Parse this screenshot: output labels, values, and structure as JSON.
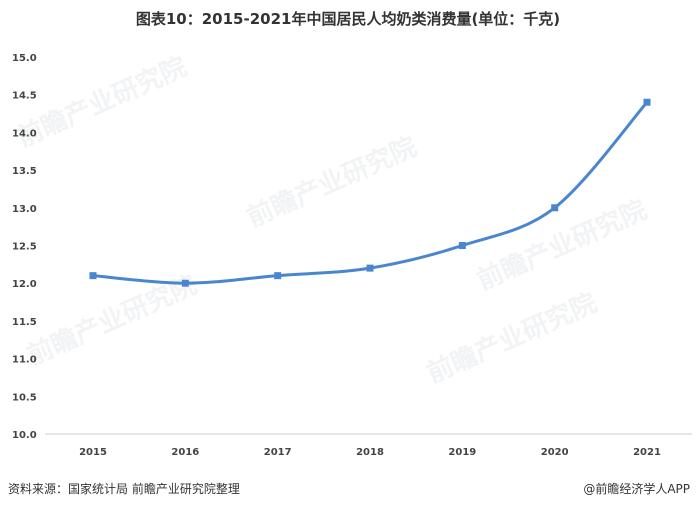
{
  "header": {
    "title": "图表10：2015-2021年中国居民人均奶类消费量(单位：千克)"
  },
  "chart_data": {
    "type": "line",
    "categories": [
      "2015",
      "2016",
      "2017",
      "2018",
      "2019",
      "2020",
      "2021"
    ],
    "series": [
      {
        "values": [
          12.1,
          12.0,
          12.1,
          12.2,
          12.5,
          13.0,
          14.4
        ]
      }
    ],
    "ylim": [
      10.0,
      15.0
    ],
    "yticks": [
      "10.0",
      "10.5",
      "11.0",
      "11.5",
      "12.0",
      "12.5",
      "13.0",
      "13.5",
      "14.0",
      "14.5",
      "15.0"
    ],
    "grid": false,
    "line_color": "#4a86cf",
    "marker": "square"
  },
  "footer": {
    "source": "资料来源：国家统计局 前瞻产业研究院整理",
    "brand": "@前瞻经济学人APP"
  },
  "watermarks": [
    "前瞻产业研究院",
    "前瞻产业研究院",
    "前瞻产业研究院",
    "前瞻产业研究院",
    "前瞻产业研究院"
  ]
}
